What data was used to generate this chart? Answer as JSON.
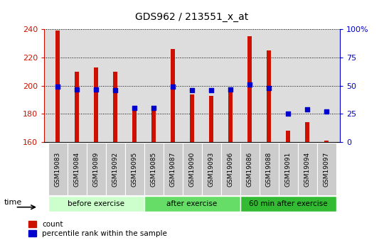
{
  "title": "GDS962 / 213551_x_at",
  "samples": [
    "GSM19083",
    "GSM19084",
    "GSM19089",
    "GSM19092",
    "GSM19095",
    "GSM19085",
    "GSM19087",
    "GSM19090",
    "GSM19093",
    "GSM19096",
    "GSM19086",
    "GSM19088",
    "GSM19091",
    "GSM19094",
    "GSM19097"
  ],
  "counts": [
    239,
    210,
    213,
    210,
    183,
    183,
    226,
    194,
    193,
    198,
    235,
    225,
    168,
    174,
    161
  ],
  "percentiles": [
    49,
    47,
    47,
    46,
    30,
    30,
    49,
    46,
    46,
    47,
    51,
    48,
    25,
    29,
    27
  ],
  "y_min": 160,
  "y_max": 240,
  "y_ticks": [
    160,
    180,
    200,
    220,
    240
  ],
  "right_y_ticks": [
    0,
    25,
    50,
    75,
    100
  ],
  "right_y_labels": [
    "0",
    "25",
    "50",
    "75",
    "100%"
  ],
  "bar_color": "#cc1100",
  "dot_color": "#0000cc",
  "groups": [
    {
      "label": "before exercise",
      "start": 0,
      "end": 5
    },
    {
      "label": "after exercise",
      "start": 5,
      "end": 10
    },
    {
      "label": "60 min after exercise",
      "start": 10,
      "end": 15
    }
  ],
  "group_colors": [
    "#ccffcc",
    "#66dd66",
    "#33bb33"
  ],
  "bar_width": 0.25,
  "dot_size": 22,
  "plot_bg": "#dddddd",
  "ylabel_color": "#cc1100",
  "right_ylabel_color": "#0000cc",
  "tick_label_bg": "#cccccc"
}
